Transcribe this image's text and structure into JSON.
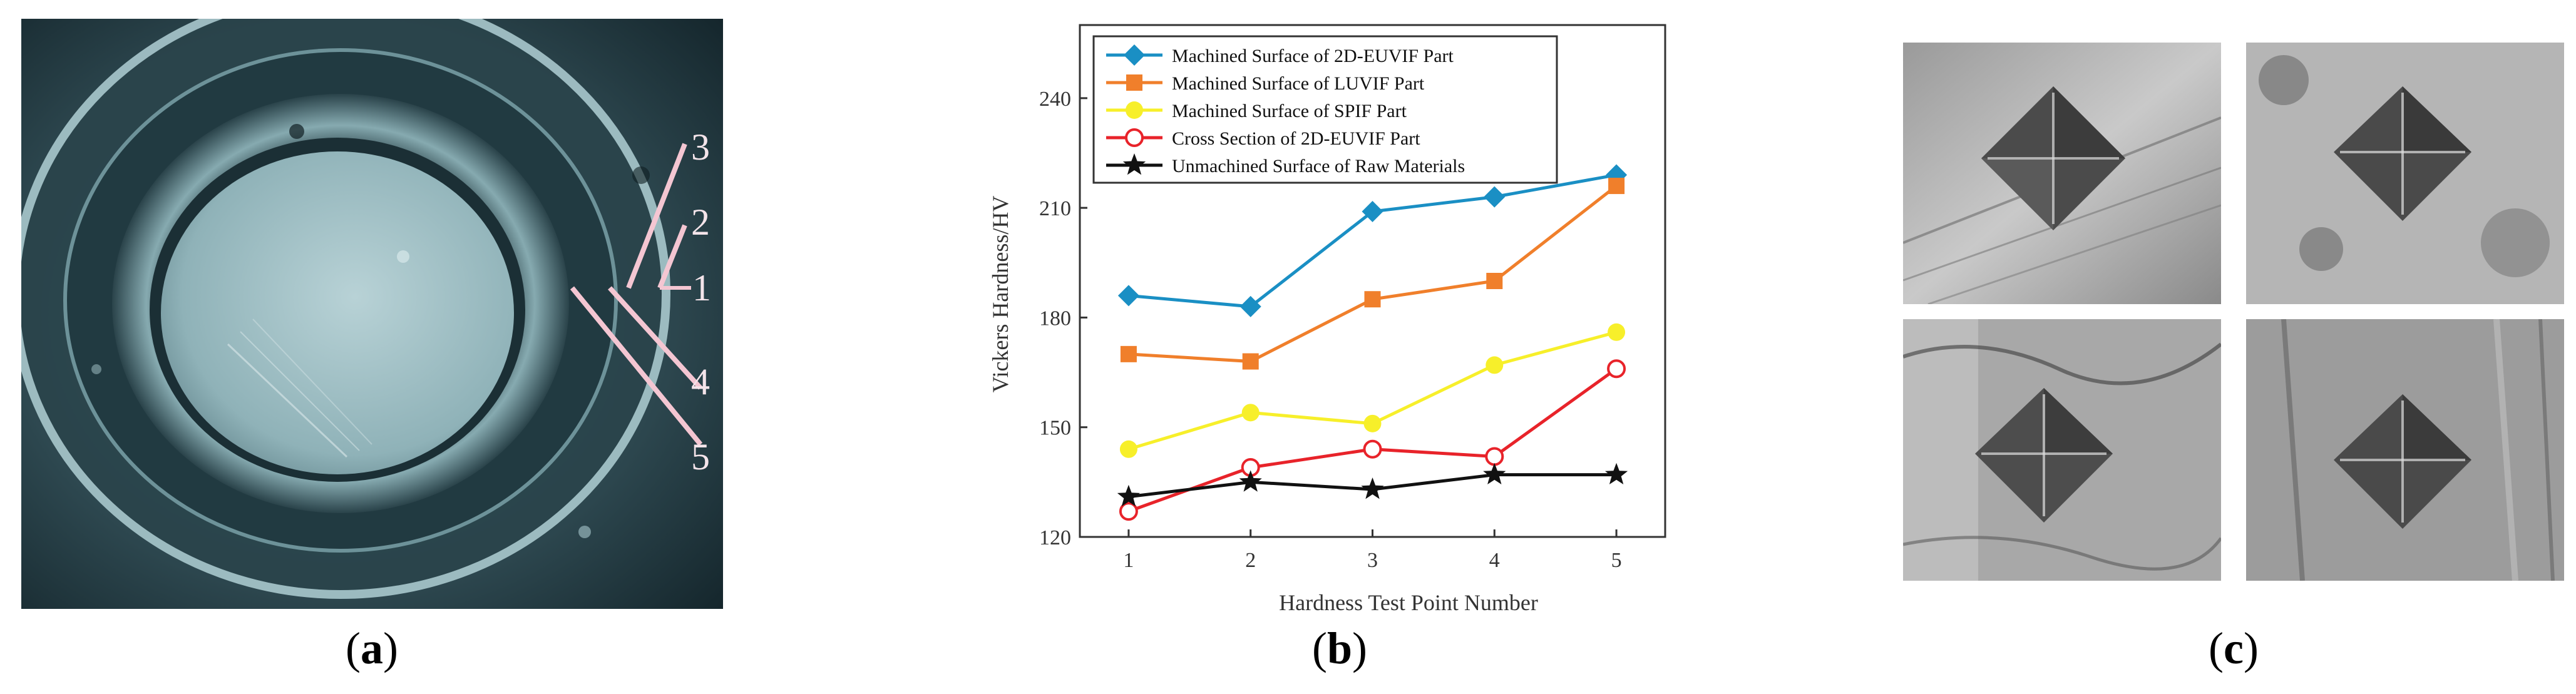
{
  "panel_a": {
    "caption_letter": "a",
    "point_labels": [
      "3",
      "2",
      "1",
      "4",
      "5"
    ]
  },
  "panel_b": {
    "caption_letter": "b"
  },
  "panel_c": {
    "caption_letter": "c"
  },
  "chart_data": {
    "type": "line",
    "title": "",
    "xlabel": "Hardness Test Point Number",
    "ylabel": "Vickers Hardness/HV",
    "x": [
      1,
      2,
      3,
      4,
      5
    ],
    "xlim": [
      0.6,
      5.4
    ],
    "ylim": [
      120,
      260
    ],
    "yticks": [
      120,
      150,
      180,
      210,
      240
    ],
    "xticks": [
      1,
      2,
      3,
      4,
      5
    ],
    "legend_position": "top-left",
    "series": [
      {
        "name": "Machined Surface of  2D-EUVIF Part",
        "color": "#1a8fc4",
        "marker": "diamond",
        "values": [
          186,
          183,
          209,
          213,
          219
        ]
      },
      {
        "name": "Machined Surface of  LUVIF Part",
        "color": "#f07f2b",
        "marker": "square",
        "values": [
          170,
          168,
          185,
          190,
          216
        ]
      },
      {
        "name": "Machined Surface of SPIF Part",
        "color": "#f7ef2a",
        "marker": "circle",
        "values": [
          144,
          154,
          151,
          167,
          176
        ]
      },
      {
        "name": "Cross Section of  2D-EUVIF Part",
        "color": "#e8232a",
        "marker": "open-circle",
        "values": [
          127,
          139,
          144,
          142,
          166
        ]
      },
      {
        "name": "Unmachined Surface of Raw Materials",
        "color": "#111111",
        "marker": "star",
        "values": [
          131,
          135,
          133,
          137,
          137
        ]
      }
    ]
  }
}
